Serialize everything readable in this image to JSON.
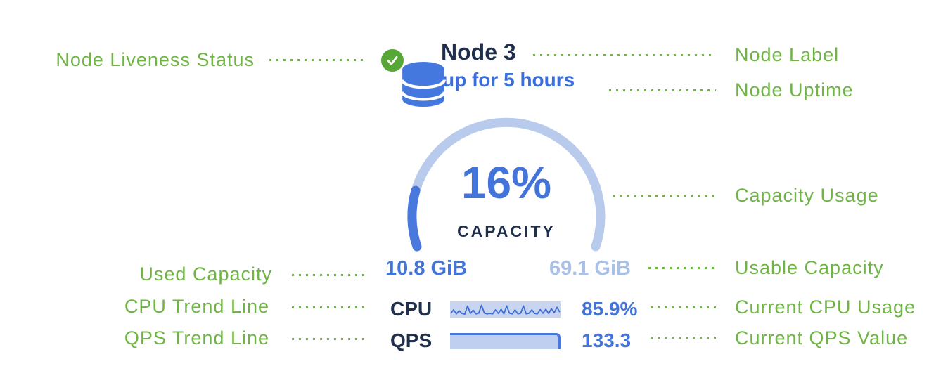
{
  "colors": {
    "annotation_green": "#6fb544",
    "navy_text": "#20304c",
    "primary_blue": "#4374d9",
    "uptime_blue": "#3c6edb",
    "light_blue": "#a9c0e8",
    "gauge_track": "#b9cbec",
    "gauge_fill": "#4a79dd",
    "status_green": "#57a737",
    "database_icon_blue": "#4478de"
  },
  "node": {
    "name": "Node 3",
    "uptime": "up for 5 hours",
    "status_icon": "check-circle-icon",
    "capacity": {
      "percent": "16%",
      "label": "CAPACITY",
      "used": "10.8 GiB",
      "usable": "69.1 GiB"
    },
    "cpu": {
      "label": "CPU",
      "value": "85.9%"
    },
    "qps": {
      "label": "QPS",
      "value": "133.3"
    }
  },
  "annotations": {
    "left": [
      {
        "label": "Node Liveness Status"
      },
      {
        "label": "Used Capacity"
      },
      {
        "label": "CPU Trend Line"
      },
      {
        "label": "QPS Trend Line"
      }
    ],
    "right": [
      {
        "label": "Node Label"
      },
      {
        "label": "Node Uptime"
      },
      {
        "label": "Capacity Usage"
      },
      {
        "label": "Usable Capacity"
      },
      {
        "label": "Current CPU Usage"
      },
      {
        "label": "Current QPS Value"
      }
    ]
  },
  "chart_data": [
    {
      "type": "gauge",
      "title": "CAPACITY",
      "value_percent": 16,
      "used": "10.8 GiB",
      "usable": "69.1 GiB",
      "arc_span_degrees": 217
    },
    {
      "type": "line",
      "name": "CPU trend sparkline",
      "current_value": "85.9%",
      "values": [
        0.18,
        0.5,
        0.14,
        0.42,
        0.18,
        0.12,
        0.85,
        0.18,
        0.48,
        0.14,
        0.2,
        0.9,
        0.22,
        0.14,
        0.18,
        0.14,
        0.5,
        0.18,
        0.55,
        0.14,
        0.85,
        0.2,
        0.14,
        0.5,
        0.14,
        0.2,
        0.85,
        0.14,
        0.2,
        0.5,
        0.18,
        0.14,
        0.52,
        0.2,
        0.55,
        0.18,
        0.6,
        0.25,
        0.72,
        0.3
      ]
    },
    {
      "type": "area",
      "name": "QPS trend",
      "current_value": 133.3,
      "values": [
        1,
        1,
        1,
        1,
        1,
        1,
        1,
        1,
        1,
        1
      ]
    }
  ]
}
